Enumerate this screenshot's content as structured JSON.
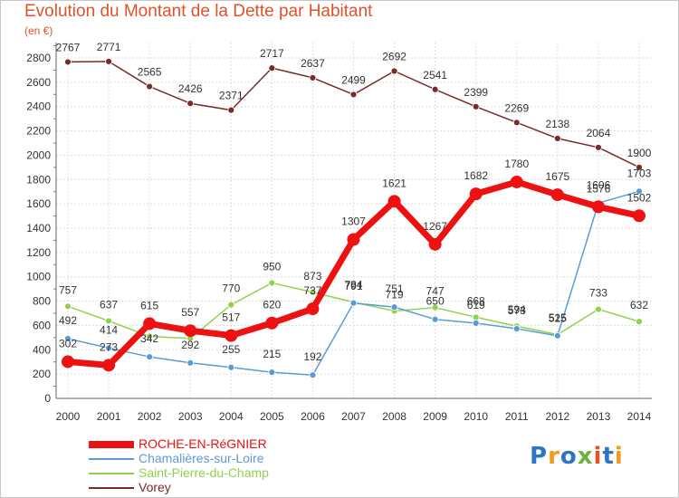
{
  "chart_data": {
    "type": "line",
    "title": "Evolution du Montant de la Dette par Habitant",
    "subtitle": "(en €)",
    "xlabel": "",
    "ylabel": "",
    "x": [
      "2000",
      "2001",
      "2002",
      "2003",
      "2004",
      "2005",
      "2006",
      "2007",
      "2008",
      "2009",
      "2010",
      "2011",
      "2012",
      "2013",
      "2014"
    ],
    "ylim": [
      0,
      2800
    ],
    "yticks": [
      0,
      200,
      400,
      600,
      800,
      1000,
      1200,
      1400,
      1600,
      1800,
      2000,
      2200,
      2400,
      2600,
      2800
    ],
    "grid": true,
    "legend_position": "bottom-left",
    "series": [
      {
        "name": "ROCHE-EN-RéGNIER",
        "color": "#ee1111",
        "values": [
          302,
          273,
          615,
          557,
          517,
          620,
          737,
          1307,
          1621,
          1267,
          1682,
          1780,
          1675,
          1576,
          1502
        ]
      },
      {
        "name": "Chamalières-sur-Loire",
        "color": "#5b9bd5",
        "values": [
          492,
          414,
          342,
          292,
          255,
          215,
          192,
          784,
          751,
          650,
          619,
          573,
          515,
          1606,
          1703
        ]
      },
      {
        "name": "Saint-Pierre-du-Champ",
        "color": "#8fd14f",
        "values": [
          757,
          637,
          510,
          493,
          770,
          950,
          873,
          791,
          719,
          747,
          668,
          594,
          525,
          733,
          632
        ]
      },
      {
        "name": "Vorey",
        "color": "#7a2a2a",
        "values": [
          2767,
          2771,
          2565,
          2426,
          2371,
          2717,
          2637,
          2499,
          2692,
          2541,
          2399,
          2269,
          2138,
          2064,
          1900
        ]
      }
    ],
    "data_labels": {
      "ROCHE-EN-RéGNIER": [
        "302",
        "273",
        "615",
        "557",
        "517",
        "620",
        "737",
        "1307",
        "1621",
        "1267",
        "1682",
        "1780",
        "1675",
        "1576",
        "1502"
      ],
      "Chamalières-sur-Loire": [
        "492",
        "414",
        "342",
        "292",
        "255",
        "215",
        "192",
        "784",
        "751",
        "650",
        "619",
        "573",
        "515",
        "1606",
        "1703"
      ],
      "Saint-Pierre-du-Champ": [
        "757",
        "637",
        "",
        "",
        "770",
        "950",
        "873",
        "791",
        "719",
        "747",
        "668",
        "594",
        "525",
        "733",
        "632"
      ],
      "Vorey": [
        "2767",
        "2771",
        "2565",
        "2426",
        "2371",
        "2717",
        "2637",
        "2499",
        "2692",
        "2541",
        "2399",
        "2269",
        "2138",
        "2064",
        "1900"
      ]
    }
  },
  "logo": {
    "text": "Proxiti",
    "colors": [
      "#2f75c6",
      "#f29a1e",
      "#6cb43f",
      "#e2522a"
    ]
  }
}
